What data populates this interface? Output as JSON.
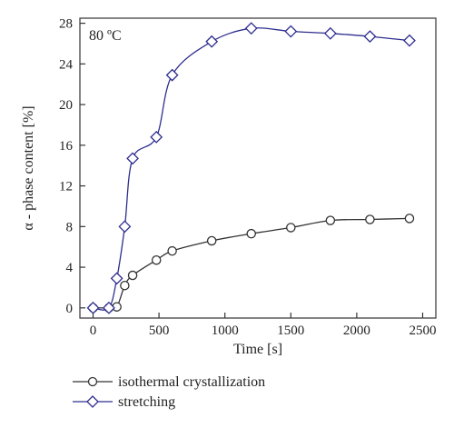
{
  "chart_data": {
    "type": "line",
    "annotation": "80 ºC",
    "xlabel": "Time [s]",
    "ylabel": "α - phase content [%]",
    "xlim": [
      -100,
      2600
    ],
    "ylim": [
      -1,
      28.5
    ],
    "xticks": [
      0,
      500,
      1000,
      1500,
      2000,
      2500
    ],
    "yticks": [
      0,
      4,
      8,
      12,
      16,
      20,
      24,
      28
    ],
    "grid": false,
    "legend_position": "bottom",
    "series": [
      {
        "name": "isothermal crystallization",
        "marker": "circle",
        "color": "#333333",
        "x": [
          0,
          120,
          180,
          240,
          300,
          480,
          600,
          900,
          1200,
          1500,
          1800,
          2100,
          2400
        ],
        "y": [
          0,
          0,
          0.1,
          2.2,
          3.2,
          4.7,
          5.6,
          6.6,
          7.3,
          7.9,
          8.6,
          8.7,
          8.8
        ]
      },
      {
        "name": "stretching",
        "marker": "diamond",
        "color": "#2e2e8f",
        "x": [
          0,
          120,
          180,
          240,
          300,
          480,
          600,
          900,
          1200,
          1500,
          1800,
          2100,
          2400
        ],
        "y": [
          0,
          0,
          2.9,
          8.0,
          14.7,
          16.8,
          22.9,
          26.2,
          27.5,
          27.2,
          27.0,
          26.7,
          26.3
        ]
      }
    ]
  }
}
